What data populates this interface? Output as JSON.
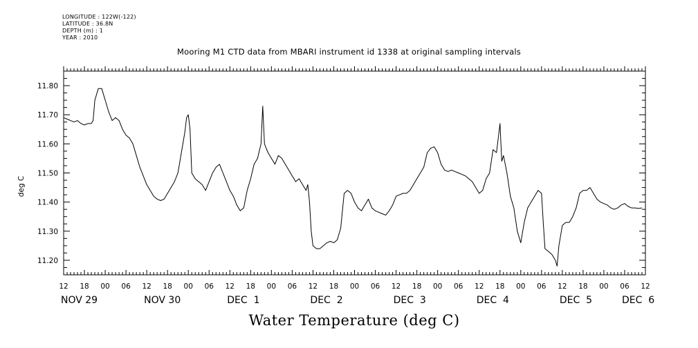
{
  "meta": {
    "longitude": "LONGITUDE : 122W(-122)",
    "latitude": "LATITUDE : 36.8N",
    "depth": "DEPTH (m) : 1",
    "year": "YEAR : 2010"
  },
  "chart_data": {
    "type": "line",
    "title": "Mooring M1 CTD data from MBARI instrument id 1338 at original sampling intervals",
    "xlabel": "Water Temperature (deg C)",
    "ylabel": "deg C",
    "ylim": [
      11.15,
      11.85
    ],
    "yticks": [
      11.2,
      11.3,
      11.4,
      11.5,
      11.6,
      11.7,
      11.8
    ],
    "ytick_labels": [
      "11.20",
      "11.30",
      "11.40",
      "11.50",
      "11.60",
      "11.70",
      "11.80"
    ],
    "xlim_hours": [
      0,
      168
    ],
    "x_unit": "hours after Nov 29 12:00",
    "hour_ticks": [
      {
        "h": 0,
        "label": "12"
      },
      {
        "h": 6,
        "label": "18"
      },
      {
        "h": 12,
        "label": "00"
      },
      {
        "h": 18,
        "label": "06"
      },
      {
        "h": 24,
        "label": "12"
      },
      {
        "h": 30,
        "label": "18"
      },
      {
        "h": 36,
        "label": "00"
      },
      {
        "h": 42,
        "label": "06"
      },
      {
        "h": 48,
        "label": "12"
      },
      {
        "h": 54,
        "label": "18"
      },
      {
        "h": 60,
        "label": "00"
      },
      {
        "h": 66,
        "label": "06"
      },
      {
        "h": 72,
        "label": "12"
      },
      {
        "h": 78,
        "label": "18"
      },
      {
        "h": 84,
        "label": "00"
      },
      {
        "h": 90,
        "label": "06"
      },
      {
        "h": 96,
        "label": "12"
      },
      {
        "h": 102,
        "label": "18"
      },
      {
        "h": 108,
        "label": "00"
      },
      {
        "h": 114,
        "label": "06"
      },
      {
        "h": 120,
        "label": "12"
      },
      {
        "h": 126,
        "label": "18"
      },
      {
        "h": 132,
        "label": "00"
      },
      {
        "h": 138,
        "label": "06"
      },
      {
        "h": 144,
        "label": "12"
      },
      {
        "h": 150,
        "label": "18"
      },
      {
        "h": 156,
        "label": "00"
      },
      {
        "h": 162,
        "label": "06"
      },
      {
        "h": 168,
        "label": "12"
      }
    ],
    "day_labels": [
      {
        "h": 0,
        "label": "NOV 29"
      },
      {
        "h": 24,
        "label": "NOV 30"
      },
      {
        "h": 48,
        "label": "DEC  1"
      },
      {
        "h": 72,
        "label": "DEC  2"
      },
      {
        "h": 96,
        "label": "DEC  3"
      },
      {
        "h": 120,
        "label": "DEC  4"
      },
      {
        "h": 144,
        "label": "DEC  5"
      },
      {
        "h": 162,
        "label": "DEC  6"
      }
    ],
    "grid": false,
    "series": [
      {
        "color": "#000000",
        "points": [
          [
            0,
            11.69
          ],
          [
            1,
            11.685
          ],
          [
            2,
            11.68
          ],
          [
            3,
            11.675
          ],
          [
            4,
            11.68
          ],
          [
            5,
            11.67
          ],
          [
            6,
            11.665
          ],
          [
            7,
            11.67
          ],
          [
            8,
            11.67
          ],
          [
            8.5,
            11.68
          ],
          [
            9,
            11.75
          ],
          [
            10,
            11.79
          ],
          [
            11,
            11.79
          ],
          [
            12,
            11.75
          ],
          [
            13,
            11.71
          ],
          [
            14,
            11.68
          ],
          [
            15,
            11.69
          ],
          [
            16,
            11.68
          ],
          [
            17,
            11.65
          ],
          [
            18,
            11.63
          ],
          [
            19,
            11.62
          ],
          [
            20,
            11.6
          ],
          [
            21,
            11.56
          ],
          [
            22,
            11.52
          ],
          [
            23,
            11.49
          ],
          [
            24,
            11.46
          ],
          [
            25,
            11.44
          ],
          [
            26,
            11.42
          ],
          [
            27,
            11.41
          ],
          [
            28,
            11.405
          ],
          [
            29,
            11.41
          ],
          [
            30,
            11.43
          ],
          [
            31,
            11.45
          ],
          [
            32,
            11.47
          ],
          [
            33,
            11.5
          ],
          [
            34,
            11.57
          ],
          [
            35,
            11.64
          ],
          [
            35.5,
            11.69
          ],
          [
            36,
            11.7
          ],
          [
            36.5,
            11.65
          ],
          [
            37,
            11.5
          ],
          [
            38,
            11.48
          ],
          [
            39,
            11.47
          ],
          [
            40,
            11.46
          ],
          [
            41,
            11.44
          ],
          [
            42,
            11.47
          ],
          [
            43,
            11.5
          ],
          [
            44,
            11.52
          ],
          [
            45,
            11.53
          ],
          [
            46,
            11.5
          ],
          [
            47,
            11.47
          ],
          [
            48,
            11.44
          ],
          [
            49,
            11.42
          ],
          [
            50,
            11.39
          ],
          [
            51,
            11.37
          ],
          [
            52,
            11.38
          ],
          [
            53,
            11.44
          ],
          [
            54,
            11.48
          ],
          [
            55,
            11.53
          ],
          [
            56,
            11.55
          ],
          [
            57,
            11.6
          ],
          [
            57.5,
            11.73
          ],
          [
            58,
            11.6
          ],
          [
            59,
            11.57
          ],
          [
            60,
            11.55
          ],
          [
            61,
            11.53
          ],
          [
            62,
            11.56
          ],
          [
            63,
            11.55
          ],
          [
            64,
            11.53
          ],
          [
            65,
            11.51
          ],
          [
            66,
            11.49
          ],
          [
            67,
            11.47
          ],
          [
            68,
            11.48
          ],
          [
            69,
            11.46
          ],
          [
            70,
            11.44
          ],
          [
            70.5,
            11.46
          ],
          [
            71,
            11.4
          ],
          [
            71.5,
            11.3
          ],
          [
            72,
            11.25
          ],
          [
            73,
            11.24
          ],
          [
            74,
            11.24
          ],
          [
            75,
            11.25
          ],
          [
            76,
            11.26
          ],
          [
            77,
            11.265
          ],
          [
            78,
            11.26
          ],
          [
            79,
            11.27
          ],
          [
            80,
            11.31
          ],
          [
            81,
            11.43
          ],
          [
            82,
            11.44
          ],
          [
            83,
            11.43
          ],
          [
            84,
            11.4
          ],
          [
            85,
            11.38
          ],
          [
            86,
            11.37
          ],
          [
            87,
            11.39
          ],
          [
            88,
            11.41
          ],
          [
            89,
            11.38
          ],
          [
            90,
            11.37
          ],
          [
            91,
            11.365
          ],
          [
            92,
            11.36
          ],
          [
            93,
            11.355
          ],
          [
            94,
            11.37
          ],
          [
            95,
            11.39
          ],
          [
            96,
            11.42
          ],
          [
            97,
            11.425
          ],
          [
            98,
            11.43
          ],
          [
            99,
            11.43
          ],
          [
            100,
            11.44
          ],
          [
            101,
            11.46
          ],
          [
            102,
            11.48
          ],
          [
            103,
            11.5
          ],
          [
            104,
            11.52
          ],
          [
            105,
            11.57
          ],
          [
            106,
            11.585
          ],
          [
            107,
            11.59
          ],
          [
            108,
            11.57
          ],
          [
            109,
            11.53
          ],
          [
            110,
            11.51
          ],
          [
            111,
            11.505
          ],
          [
            112,
            11.51
          ],
          [
            113,
            11.505
          ],
          [
            114,
            11.5
          ],
          [
            115,
            11.495
          ],
          [
            116,
            11.49
          ],
          [
            117,
            11.48
          ],
          [
            118,
            11.47
          ],
          [
            119,
            11.45
          ],
          [
            120,
            11.43
          ],
          [
            121,
            11.44
          ],
          [
            122,
            11.48
          ],
          [
            123,
            11.5
          ],
          [
            124,
            11.58
          ],
          [
            125,
            11.57
          ],
          [
            126,
            11.67
          ],
          [
            126.5,
            11.54
          ],
          [
            127,
            11.56
          ],
          [
            128,
            11.5
          ],
          [
            129,
            11.42
          ],
          [
            130,
            11.38
          ],
          [
            131,
            11.3
          ],
          [
            132,
            11.26
          ],
          [
            133,
            11.33
          ],
          [
            134,
            11.38
          ],
          [
            135,
            11.4
          ],
          [
            136,
            11.42
          ],
          [
            137,
            11.44
          ],
          [
            138,
            11.43
          ],
          [
            138.5,
            11.33
          ],
          [
            139,
            11.24
          ],
          [
            140,
            11.23
          ],
          [
            141,
            11.22
          ],
          [
            142,
            11.2
          ],
          [
            142.5,
            11.18
          ],
          [
            143,
            11.25
          ],
          [
            144,
            11.32
          ],
          [
            145,
            11.33
          ],
          [
            146,
            11.33
          ],
          [
            147,
            11.35
          ],
          [
            148,
            11.38
          ],
          [
            149,
            11.43
          ],
          [
            150,
            11.44
          ],
          [
            151,
            11.44
          ],
          [
            152,
            11.45
          ],
          [
            153,
            11.43
          ],
          [
            154,
            11.41
          ],
          [
            155,
            11.4
          ],
          [
            156,
            11.395
          ],
          [
            157,
            11.39
          ],
          [
            158,
            11.38
          ],
          [
            159,
            11.375
          ],
          [
            160,
            11.38
          ],
          [
            161,
            11.39
          ],
          [
            162,
            11.395
          ],
          [
            163,
            11.385
          ],
          [
            164,
            11.38
          ],
          [
            165,
            11.38
          ],
          [
            166,
            11.378
          ],
          [
            167,
            11.38
          ]
        ]
      }
    ]
  }
}
